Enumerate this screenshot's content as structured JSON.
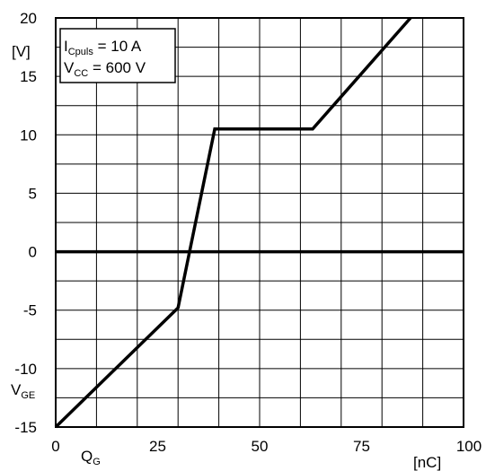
{
  "chart_data": {
    "type": "line",
    "xlim": [
      0,
      100
    ],
    "ylim": [
      -15,
      20
    ],
    "x_ticks": [
      "0",
      "25",
      "50",
      "75",
      "100"
    ],
    "y_ticks": [
      "20",
      "15",
      "10",
      "5",
      "0",
      "-5",
      "-10",
      "-15"
    ],
    "x_grid_step": 10,
    "y_grid_step": 2.5,
    "grid": true,
    "xlabel": {
      "main": "Q",
      "sub": "G"
    },
    "xunit": "[nC]",
    "ylabel": {
      "main": "V",
      "sub": "GE"
    },
    "yunit": "[V]",
    "legend": {
      "line1": {
        "main": "I",
        "sub": "Cpuls",
        "rest": " = 10 A"
      },
      "line2": {
        "main": "V",
        "sub": "CC",
        "rest": "  = 600 V"
      }
    },
    "series": [
      {
        "x": [
          0,
          30,
          39,
          63,
          87
        ],
        "y": [
          -15,
          -4.8,
          10.5,
          10.5,
          20
        ]
      }
    ],
    "zero_line_y": 0
  }
}
